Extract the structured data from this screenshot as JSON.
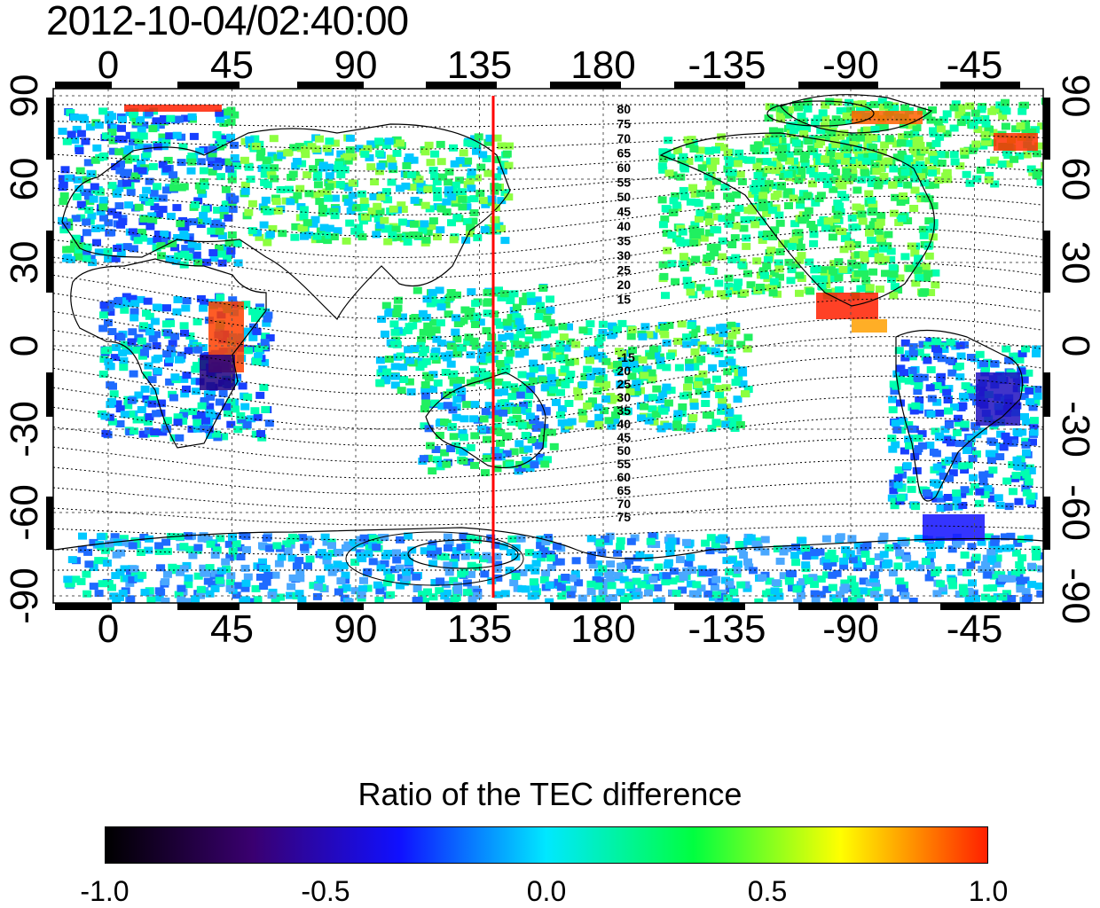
{
  "title": "2012-10-04/02:40:00",
  "x_axis": {
    "ticks": [
      {
        "lon": 0,
        "label": "0"
      },
      {
        "lon": 45,
        "label": "45"
      },
      {
        "lon": 90,
        "label": "90"
      },
      {
        "lon": 135,
        "label": "135"
      },
      {
        "lon": 180,
        "label": "180"
      },
      {
        "lon": 225,
        "label": "-135"
      },
      {
        "lon": 270,
        "label": "-90"
      },
      {
        "lon": 315,
        "label": "-45"
      }
    ],
    "range": [
      -20,
      340
    ]
  },
  "y_axis": {
    "ticks": [
      {
        "lat": 90,
        "label": "90"
      },
      {
        "lat": 60,
        "label": "60"
      },
      {
        "lat": 30,
        "label": "30"
      },
      {
        "lat": 0,
        "label": "0"
      },
      {
        "lat": -30,
        "label": "-30"
      },
      {
        "lat": -60,
        "label": "-60"
      },
      {
        "lat": -90,
        "label": "-90"
      }
    ],
    "range": [
      -90,
      90
    ]
  },
  "marker_line": {
    "lon": 140,
    "color": "#ff0000"
  },
  "contour_labels": {
    "north": [
      "80",
      "75",
      "70",
      "65",
      "60",
      "55",
      "50",
      "45",
      "40",
      "35",
      "30",
      "25",
      "20",
      "15"
    ],
    "south": [
      "-15",
      "20",
      "25",
      "30",
      "35",
      "40",
      "45",
      "50",
      "55",
      "60",
      "65",
      "70",
      "75"
    ]
  },
  "colorbar": {
    "title": "Ratio of the TEC difference",
    "labels": [
      "-1.0",
      "-0.5",
      "0.0",
      "0.5",
      "1.0"
    ],
    "range": [
      -1.0,
      1.0
    ],
    "stops": [
      "#000000",
      "#3a0070",
      "#1010ff",
      "#00e8ff",
      "#00ff40",
      "#ffff00",
      "#ff2000"
    ]
  },
  "colors": {
    "grid": "#555555",
    "coastline": "#000000",
    "marker": "#ff0000"
  }
}
